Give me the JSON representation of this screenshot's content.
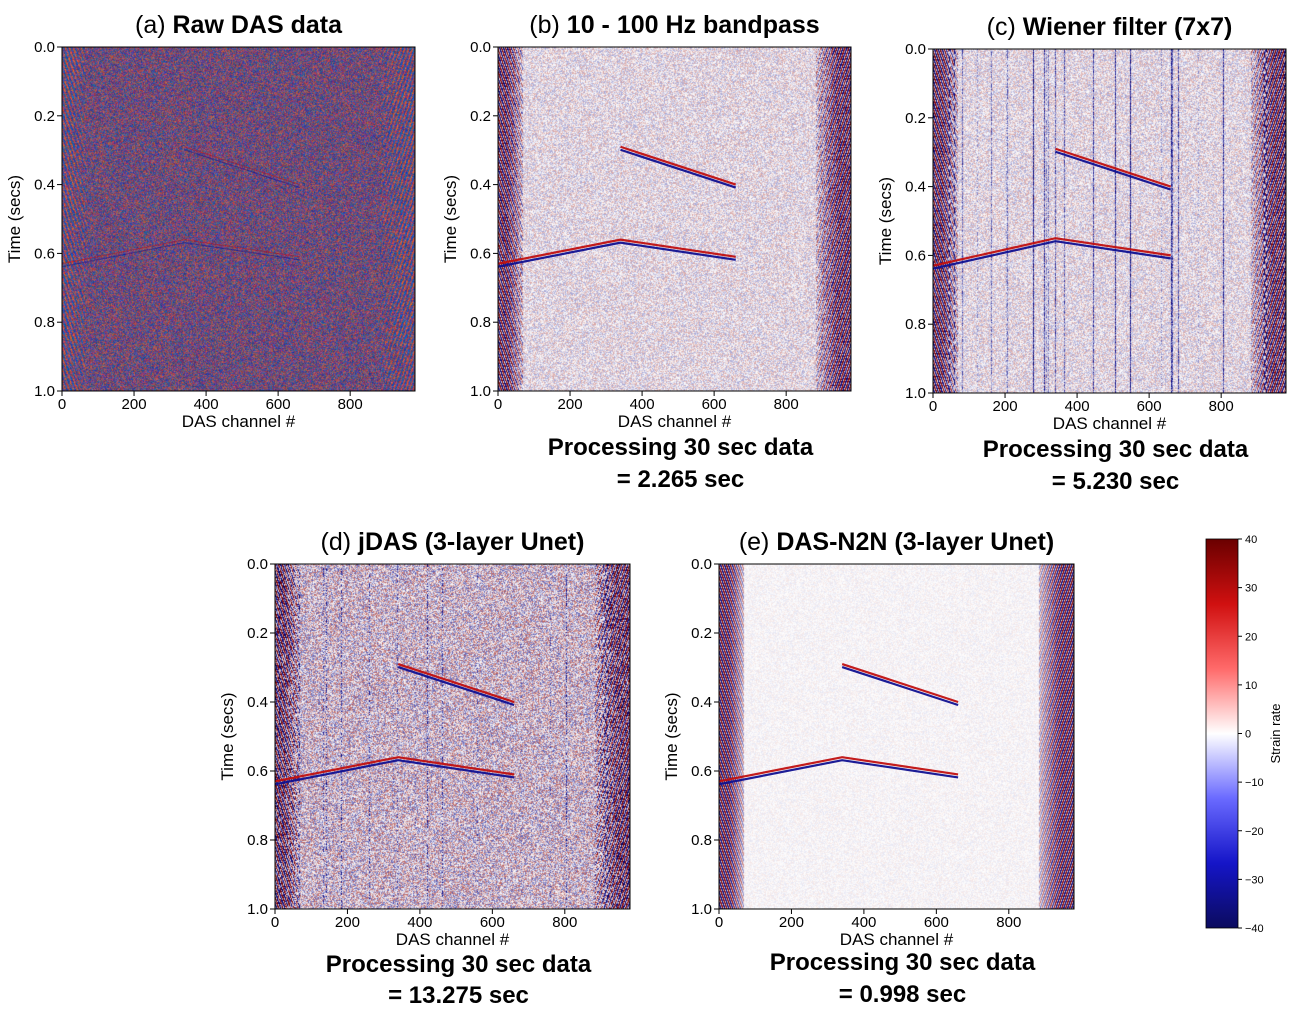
{
  "chart_data": [
    {
      "type": "heatmap",
      "id": "a",
      "panel_letter": "(a)",
      "title": "Raw DAS data",
      "xlabel": "DAS channel #",
      "ylabel": "Time (secs)",
      "xlim": [
        0,
        980
      ],
      "ylim": [
        1.0,
        0.0
      ],
      "xticks": [
        "0",
        "200",
        "400",
        "600",
        "800"
      ],
      "yticks": [
        "0.0",
        "0.2",
        "0.4",
        "0.6",
        "0.8",
        "1.0"
      ],
      "note": [],
      "noise_level": "high",
      "events": [
        {
          "kind": "upper-branch",
          "points": [
            [
              340,
              0.29
            ],
            [
              660,
              0.4
            ]
          ],
          "clarity": "faint"
        },
        {
          "kind": "lower-branch",
          "points": [
            [
              0,
              0.63
            ],
            [
              340,
              0.56
            ],
            [
              660,
              0.61
            ]
          ],
          "clarity": "faint"
        }
      ]
    },
    {
      "type": "heatmap",
      "id": "b",
      "panel_letter": "(b)",
      "title": "10 - 100 Hz bandpass",
      "xlabel": "DAS channel #",
      "ylabel": "Time (secs)",
      "xlim": [
        0,
        980
      ],
      "ylim": [
        1.0,
        0.0
      ],
      "xticks": [
        "0",
        "200",
        "400",
        "600",
        "800"
      ],
      "yticks": [
        "0.0",
        "0.2",
        "0.4",
        "0.6",
        "0.8",
        "1.0"
      ],
      "note": [
        "Processing 30 sec data",
        "= 2.265 sec"
      ],
      "noise_level": "medium",
      "events": [
        {
          "kind": "upper-branch",
          "points": [
            [
              340,
              0.29
            ],
            [
              660,
              0.4
            ]
          ],
          "clarity": "clear"
        },
        {
          "kind": "lower-branch",
          "points": [
            [
              0,
              0.63
            ],
            [
              340,
              0.56
            ],
            [
              660,
              0.61
            ]
          ],
          "clarity": "clear"
        }
      ]
    },
    {
      "type": "heatmap",
      "id": "c",
      "panel_letter": "(c)",
      "title": "Wiener filter (7x7)",
      "xlabel": "DAS channel #",
      "ylabel": "Time (secs)",
      "xlim": [
        0,
        980
      ],
      "ylim": [
        1.0,
        0.0
      ],
      "xticks": [
        "0",
        "200",
        "400",
        "600",
        "800"
      ],
      "yticks": [
        "0.0",
        "0.2",
        "0.4",
        "0.6",
        "0.8",
        "1.0"
      ],
      "note": [
        "Processing 30 sec data",
        "= 5.230 sec"
      ],
      "noise_level": "medium",
      "events": [
        {
          "kind": "upper-branch",
          "points": [
            [
              340,
              0.29
            ],
            [
              660,
              0.4
            ]
          ],
          "clarity": "clear"
        },
        {
          "kind": "lower-branch",
          "points": [
            [
              0,
              0.63
            ],
            [
              340,
              0.55
            ],
            [
              660,
              0.6
            ]
          ],
          "clarity": "clear"
        }
      ]
    },
    {
      "type": "heatmap",
      "id": "d",
      "panel_letter": "(d)",
      "title": "jDAS (3-layer Unet)",
      "xlabel": "DAS channel #",
      "ylabel": "Time (secs)",
      "xlim": [
        0,
        980
      ],
      "ylim": [
        1.0,
        0.0
      ],
      "xticks": [
        "0",
        "200",
        "400",
        "600",
        "800"
      ],
      "yticks": [
        "0.0",
        "0.2",
        "0.4",
        "0.6",
        "0.8",
        "1.0"
      ],
      "note": [
        "Processing 30 sec data",
        "= 13.275 sec"
      ],
      "noise_level": "high",
      "events": [
        {
          "kind": "upper-branch",
          "points": [
            [
              340,
              0.29
            ],
            [
              660,
              0.4
            ]
          ],
          "clarity": "clear"
        },
        {
          "kind": "lower-branch",
          "points": [
            [
              0,
              0.63
            ],
            [
              340,
              0.56
            ],
            [
              660,
              0.61
            ]
          ],
          "clarity": "clear"
        }
      ]
    },
    {
      "type": "heatmap",
      "id": "e",
      "panel_letter": "(e)",
      "title": "DAS-N2N (3-layer Unet)",
      "xlabel": "DAS channel #",
      "ylabel": "Time (secs)",
      "xlim": [
        0,
        980
      ],
      "ylim": [
        1.0,
        0.0
      ],
      "xticks": [
        "0",
        "200",
        "400",
        "600",
        "800"
      ],
      "yticks": [
        "0.0",
        "0.2",
        "0.4",
        "0.6",
        "0.8",
        "1.0"
      ],
      "note": [
        "Processing 30 sec data",
        "= 0.998 sec"
      ],
      "noise_level": "low",
      "events": [
        {
          "kind": "upper-branch",
          "points": [
            [
              340,
              0.29
            ],
            [
              660,
              0.4
            ]
          ],
          "clarity": "clear"
        },
        {
          "kind": "lower-branch",
          "points": [
            [
              0,
              0.63
            ],
            [
              340,
              0.56
            ],
            [
              660,
              0.61
            ]
          ],
          "clarity": "clear"
        }
      ]
    }
  ],
  "colorbar": {
    "label": "Strain rate",
    "range": [
      -40,
      40
    ],
    "ticks": [
      "40",
      "30",
      "20",
      "10",
      "0",
      "−10",
      "−20",
      "−30",
      "−40"
    ],
    "colors": [
      "#0b0b5e",
      "#1515c8",
      "#6a6aff",
      "#ffffff",
      "#ff6a6a",
      "#d01010",
      "#6a0000"
    ]
  }
}
